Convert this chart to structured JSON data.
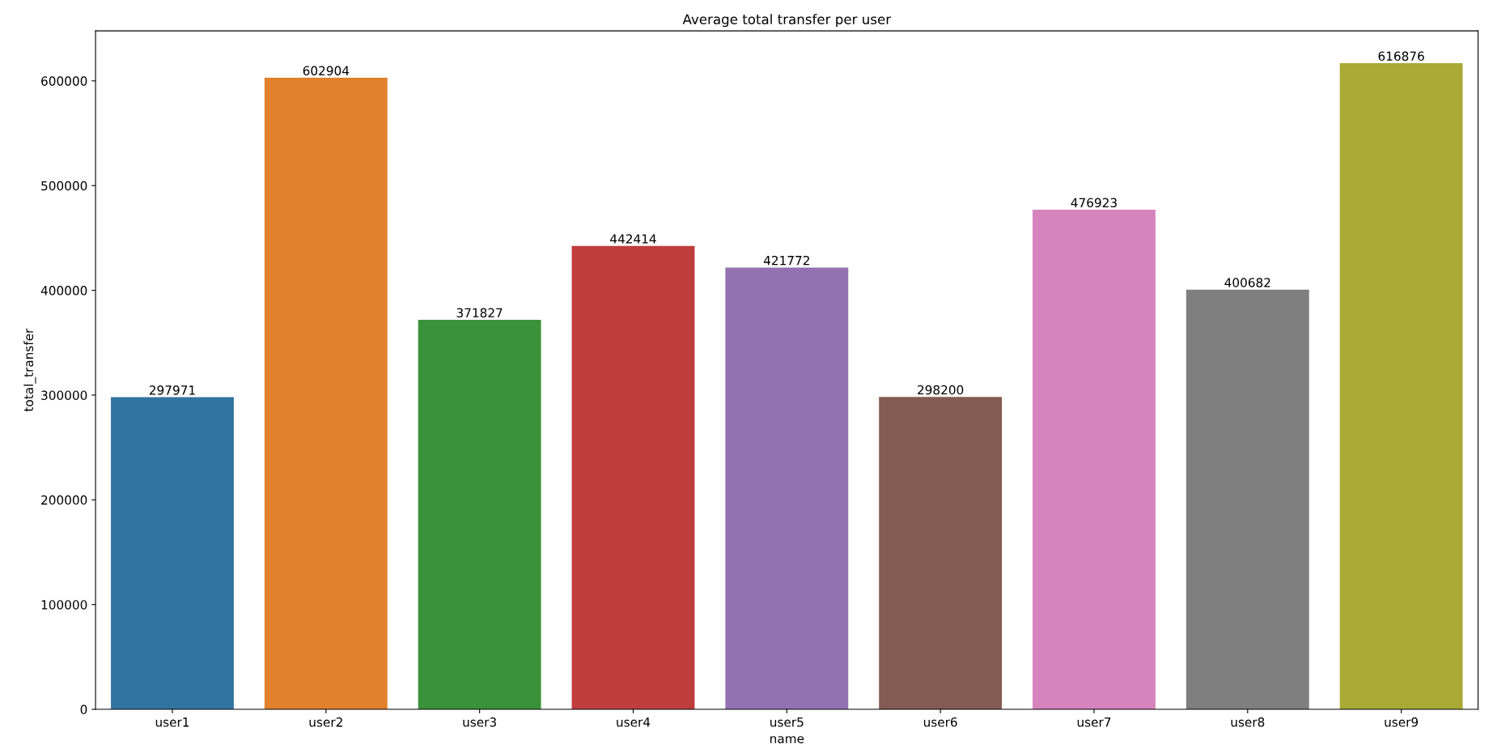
{
  "chart_data": {
    "type": "bar",
    "title": "Average total transfer per user",
    "xlabel": "name",
    "ylabel": "total_transfer",
    "categories": [
      "user1",
      "user2",
      "user3",
      "user4",
      "user5",
      "user6",
      "user7",
      "user8",
      "user9"
    ],
    "values": [
      297971,
      602904,
      371827,
      442414,
      421772,
      298200,
      476923,
      400682,
      616876
    ],
    "colors": [
      "#3274a1",
      "#e1812c",
      "#3a923a",
      "#c03d3e",
      "#9372b2",
      "#845b53",
      "#d684bd",
      "#7f7f7f",
      "#a9aa35"
    ],
    "ylim": [
      0,
      647720
    ],
    "yticks": [
      0,
      100000,
      200000,
      300000,
      400000,
      500000,
      600000
    ],
    "data_labels": true,
    "grid": false,
    "legend": false
  }
}
